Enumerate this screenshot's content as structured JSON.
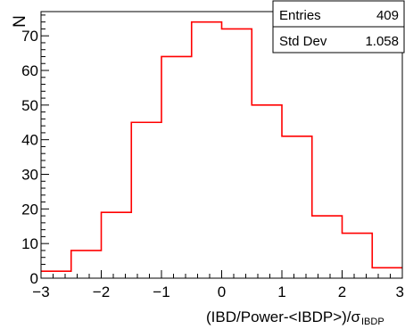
{
  "chart_data": {
    "type": "bar",
    "histogram": true,
    "bin_edges": [
      -3,
      -2.5,
      -2,
      -1.5,
      -1,
      -0.5,
      0,
      0.5,
      1,
      1.5,
      2,
      2.5,
      3
    ],
    "values": [
      2,
      8,
      19,
      45,
      64,
      74,
      72,
      50,
      41,
      18,
      13,
      3
    ],
    "xlim": [
      -3,
      3
    ],
    "ylim": [
      0,
      77
    ],
    "x_ticks": [
      -3,
      -2,
      -1,
      0,
      1,
      2,
      3
    ],
    "x_tick_labels": [
      "−3",
      "−2",
      "−1",
      "0",
      "1",
      "2",
      "3"
    ],
    "y_ticks": [
      0,
      10,
      20,
      30,
      40,
      50,
      60,
      70
    ],
    "y_tick_labels": [
      "0",
      "10",
      "20",
      "30",
      "40",
      "50",
      "60",
      "70"
    ],
    "ylabel": "N",
    "xlabel_main": "(IBD/Power-<IBDP>)/σ",
    "xlabel_sub": "IBDP",
    "line_color": "#ff0000",
    "grid": false,
    "stats_box": {
      "position": "top-right",
      "rows": [
        {
          "label": "Entries",
          "value": "409"
        },
        {
          "label": "Std Dev",
          "value": "1.058"
        }
      ]
    }
  }
}
